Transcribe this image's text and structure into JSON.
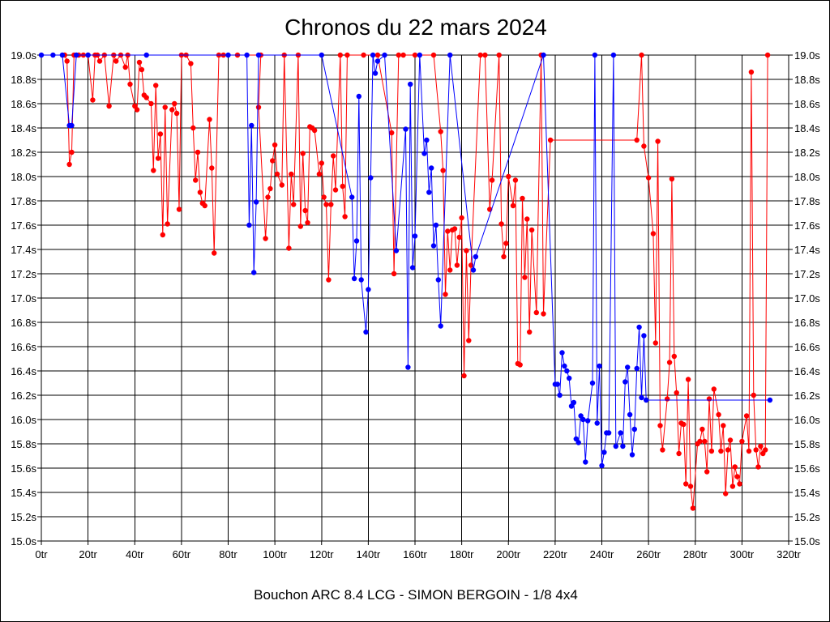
{
  "chart_data": {
    "type": "line",
    "title": "Chronos du 22 mars 2024",
    "subtitle": "Bouchon ARC 8.4 LCG - SIMON BERGOIN - 1/8 4x4",
    "xlabel": "",
    "ylabel": "",
    "xlim": [
      0,
      320
    ],
    "ylim": [
      15.0,
      19.0
    ],
    "grid": true,
    "x_ticks": [
      0,
      20,
      40,
      60,
      80,
      100,
      120,
      140,
      160,
      180,
      200,
      220,
      240,
      260,
      280,
      300,
      320
    ],
    "x_tick_labels": [
      "0tr",
      "20tr",
      "40tr",
      "60tr",
      "80tr",
      "100tr",
      "120tr",
      "140tr",
      "160tr",
      "180tr",
      "200tr",
      "220tr",
      "240tr",
      "260tr",
      "280tr",
      "300tr",
      "320tr"
    ],
    "y_ticks": [
      15.0,
      15.2,
      15.4,
      15.6,
      15.8,
      16.0,
      16.2,
      16.4,
      16.6,
      16.8,
      17.0,
      17.2,
      17.4,
      17.6,
      17.8,
      18.0,
      18.2,
      18.4,
      18.6,
      18.8,
      19.0
    ],
    "y_tick_labels": [
      "15.0s",
      "15.2s",
      "15.4s",
      "15.6s",
      "15.8s",
      "16.0s",
      "16.2s",
      "16.4s",
      "16.6s",
      "16.8s",
      "17.0s",
      "17.2s",
      "17.4s",
      "17.6s",
      "17.8s",
      "18.0s",
      "18.2s",
      "18.4s",
      "18.6s",
      "18.8s",
      "19.0s"
    ],
    "series": [
      {
        "name": "red",
        "color": "#ff0000",
        "points": [
          [
            10,
            19.0
          ],
          [
            11,
            18.95
          ],
          [
            12,
            18.1
          ],
          [
            13,
            18.2
          ],
          [
            14,
            19.0
          ],
          [
            16,
            19.0
          ],
          [
            18,
            19.0
          ],
          [
            20,
            19.0
          ],
          [
            22,
            18.63
          ],
          [
            23,
            19.0
          ],
          [
            24,
            19.0
          ],
          [
            25,
            18.95
          ],
          [
            27,
            19.0
          ],
          [
            29,
            18.58
          ],
          [
            31,
            19.0
          ],
          [
            32,
            18.95
          ],
          [
            34,
            19.0
          ],
          [
            36,
            18.9
          ],
          [
            37,
            19.0
          ],
          [
            38,
            18.76
          ],
          [
            40,
            18.58
          ],
          [
            41,
            18.55
          ],
          [
            42,
            18.94
          ],
          [
            43,
            18.88
          ],
          [
            44,
            18.67
          ],
          [
            45,
            18.65
          ],
          [
            47,
            18.6
          ],
          [
            48,
            18.05
          ],
          [
            49,
            18.75
          ],
          [
            50,
            18.15
          ],
          [
            51,
            18.35
          ],
          [
            52,
            17.52
          ],
          [
            53,
            18.57
          ],
          [
            54,
            17.61
          ],
          [
            56,
            18.55
          ],
          [
            57,
            18.6
          ],
          [
            58,
            18.52
          ],
          [
            59,
            17.73
          ],
          [
            60,
            19.0
          ],
          [
            62,
            19.0
          ],
          [
            64,
            18.93
          ],
          [
            65,
            18.4
          ],
          [
            66,
            17.97
          ],
          [
            67,
            18.2
          ],
          [
            68,
            17.87
          ],
          [
            69,
            17.78
          ],
          [
            70,
            17.76
          ],
          [
            72,
            18.47
          ],
          [
            73,
            18.07
          ],
          [
            74,
            17.37
          ],
          [
            76,
            19.0
          ],
          [
            78,
            19.0
          ],
          [
            84,
            19.0
          ],
          [
            94,
            19.0
          ],
          [
            93,
            18.57
          ],
          [
            96,
            17.49
          ],
          [
            97,
            17.83
          ],
          [
            98,
            17.9
          ],
          [
            99,
            18.13
          ],
          [
            100,
            18.26
          ],
          [
            101,
            18.02
          ],
          [
            103,
            17.93
          ],
          [
            104,
            19.0
          ],
          [
            106,
            17.41
          ],
          [
            107,
            18.02
          ],
          [
            108,
            17.77
          ],
          [
            110,
            19.0
          ],
          [
            111,
            17.59
          ],
          [
            112,
            18.19
          ],
          [
            113,
            17.72
          ],
          [
            114,
            17.62
          ],
          [
            115,
            18.41
          ],
          [
            116,
            18.4
          ],
          [
            117,
            18.38
          ],
          [
            119,
            18.02
          ],
          [
            120,
            18.11
          ],
          [
            121,
            17.83
          ],
          [
            122,
            17.77
          ],
          [
            123,
            17.15
          ],
          [
            124,
            17.77
          ],
          [
            125,
            18.17
          ],
          [
            126,
            17.89
          ],
          [
            128,
            19.0
          ],
          [
            129,
            17.92
          ],
          [
            130,
            17.67
          ],
          [
            131,
            19.0
          ],
          [
            138,
            19.0
          ],
          [
            144,
            19.0
          ],
          [
            150,
            18.36
          ],
          [
            151,
            17.2
          ],
          [
            153,
            19.0
          ],
          [
            155,
            19.0
          ],
          [
            160,
            19.0
          ],
          [
            168,
            19.0
          ],
          [
            171,
            18.37
          ],
          [
            172,
            18.05
          ],
          [
            173,
            17.03
          ],
          [
            174,
            17.55
          ],
          [
            175,
            17.23
          ],
          [
            176,
            17.56
          ],
          [
            177,
            17.57
          ],
          [
            178,
            17.27
          ],
          [
            179,
            17.5
          ],
          [
            180,
            17.66
          ],
          [
            181,
            16.36
          ],
          [
            182,
            17.39
          ],
          [
            183,
            16.65
          ],
          [
            184,
            17.27
          ],
          [
            188,
            19.0
          ],
          [
            190,
            19.0
          ],
          [
            192,
            17.73
          ],
          [
            193,
            17.97
          ],
          [
            196,
            19.0
          ],
          [
            197,
            17.61
          ],
          [
            198,
            17.34
          ],
          [
            199,
            17.45
          ],
          [
            200,
            18.0
          ],
          [
            202,
            17.76
          ],
          [
            203,
            17.97
          ],
          [
            204,
            16.46
          ],
          [
            205,
            16.45
          ],
          [
            206,
            17.82
          ],
          [
            207,
            17.17
          ],
          [
            208,
            17.65
          ],
          [
            209,
            16.72
          ],
          [
            210,
            17.56
          ],
          [
            212,
            16.88
          ],
          [
            214,
            19.0
          ],
          [
            215,
            16.87
          ],
          [
            218,
            18.3
          ],
          [
            255,
            18.3
          ],
          [
            257,
            19.0
          ],
          [
            258,
            18.25
          ],
          [
            260,
            17.99
          ],
          [
            262,
            17.53
          ],
          [
            263,
            16.63
          ],
          [
            264,
            18.29
          ],
          [
            265,
            15.95
          ],
          [
            266,
            15.75
          ],
          [
            268,
            16.17
          ],
          [
            269,
            16.47
          ],
          [
            270,
            17.98
          ],
          [
            271,
            16.52
          ],
          [
            272,
            16.22
          ],
          [
            273,
            15.72
          ],
          [
            274,
            15.97
          ],
          [
            275,
            15.96
          ],
          [
            276,
            15.47
          ],
          [
            277,
            16.33
          ],
          [
            278,
            15.45
          ],
          [
            279,
            15.27
          ],
          [
            281,
            15.8
          ],
          [
            282,
            15.82
          ],
          [
            283,
            15.92
          ],
          [
            284,
            15.82
          ],
          [
            285,
            15.57
          ],
          [
            286,
            16.17
          ],
          [
            287,
            15.74
          ],
          [
            288,
            16.25
          ],
          [
            290,
            16.04
          ],
          [
            291,
            15.74
          ],
          [
            292,
            15.95
          ],
          [
            293,
            15.39
          ],
          [
            294,
            15.75
          ],
          [
            295,
            15.83
          ],
          [
            296,
            15.45
          ],
          [
            297,
            15.61
          ],
          [
            298,
            15.53
          ],
          [
            299,
            15.47
          ],
          [
            300,
            15.82
          ],
          [
            302,
            16.03
          ],
          [
            303,
            15.74
          ],
          [
            304,
            18.86
          ],
          [
            305,
            16.2
          ],
          [
            306,
            15.75
          ],
          [
            307,
            15.61
          ],
          [
            308,
            15.78
          ],
          [
            309,
            15.72
          ],
          [
            310,
            15.75
          ],
          [
            311,
            19.0
          ]
        ]
      },
      {
        "name": "blue",
        "color": "#0000ff",
        "points": [
          [
            0,
            19.0
          ],
          [
            5,
            19.0
          ],
          [
            9,
            19.0
          ],
          [
            12,
            18.42
          ],
          [
            13,
            18.42
          ],
          [
            15,
            19.0
          ],
          [
            20,
            19.0
          ],
          [
            45,
            19.0
          ],
          [
            80,
            19.0
          ],
          [
            88,
            19.0
          ],
          [
            89,
            17.6
          ],
          [
            90,
            18.42
          ],
          [
            91,
            17.21
          ],
          [
            92,
            17.79
          ],
          [
            93,
            19.0
          ],
          [
            120,
            19.0
          ],
          [
            133,
            17.83
          ],
          [
            134,
            17.16
          ],
          [
            135,
            17.47
          ],
          [
            136,
            18.66
          ],
          [
            137,
            17.15
          ],
          [
            139,
            16.72
          ],
          [
            140,
            17.07
          ],
          [
            141,
            17.99
          ],
          [
            142,
            19.0
          ],
          [
            143,
            18.85
          ],
          [
            144,
            18.95
          ],
          [
            147,
            19.0
          ],
          [
            152,
            17.39
          ],
          [
            156,
            18.39
          ],
          [
            157,
            16.43
          ],
          [
            158,
            18.76
          ],
          [
            159,
            17.25
          ],
          [
            160,
            17.51
          ],
          [
            162,
            19.0
          ],
          [
            164,
            18.19
          ],
          [
            165,
            18.3
          ],
          [
            166,
            17.87
          ],
          [
            167,
            18.07
          ],
          [
            168,
            17.43
          ],
          [
            169,
            17.6
          ],
          [
            170,
            17.15
          ],
          [
            171,
            16.77
          ],
          [
            175,
            19.0
          ],
          [
            185,
            17.23
          ],
          [
            186,
            17.34
          ],
          [
            215,
            19.0
          ],
          [
            220,
            16.29
          ],
          [
            221,
            16.29
          ],
          [
            222,
            16.2
          ],
          [
            223,
            16.55
          ],
          [
            224,
            16.44
          ],
          [
            225,
            16.4
          ],
          [
            226,
            16.34
          ],
          [
            227,
            16.11
          ],
          [
            228,
            16.14
          ],
          [
            229,
            15.84
          ],
          [
            230,
            15.81
          ],
          [
            231,
            16.03
          ],
          [
            232,
            16.0
          ],
          [
            233,
            15.65
          ],
          [
            234,
            15.99
          ],
          [
            236,
            16.3
          ],
          [
            237,
            19.0
          ],
          [
            238,
            15.97
          ],
          [
            239,
            16.44
          ],
          [
            240,
            15.62
          ],
          [
            241,
            15.73
          ],
          [
            242,
            15.89
          ],
          [
            243,
            15.89
          ],
          [
            245,
            19.0
          ],
          [
            246,
            15.78
          ],
          [
            248,
            15.89
          ],
          [
            249,
            15.78
          ],
          [
            250,
            16.31
          ],
          [
            251,
            16.43
          ],
          [
            252,
            16.04
          ],
          [
            253,
            15.71
          ],
          [
            254,
            15.92
          ],
          [
            255,
            16.42
          ],
          [
            256,
            16.76
          ],
          [
            257,
            16.18
          ],
          [
            258,
            16.69
          ],
          [
            259,
            16.16
          ],
          [
            312,
            16.16
          ]
        ]
      }
    ]
  }
}
